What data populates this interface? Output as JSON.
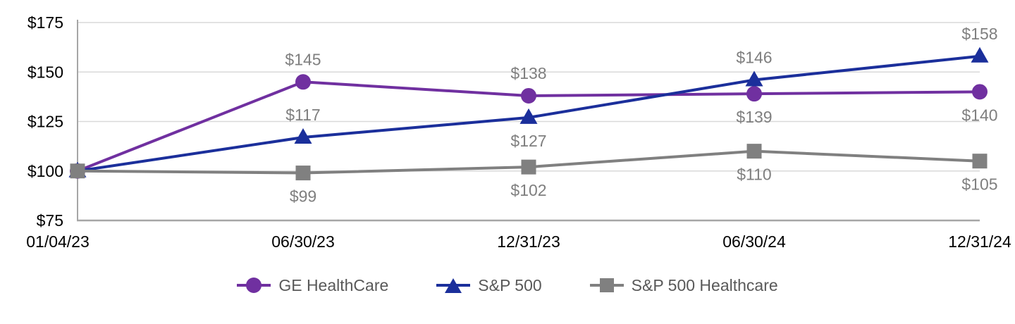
{
  "chart_data": {
    "type": "line",
    "title": "",
    "xlabel": "",
    "ylabel": "",
    "x_categories": [
      "01/04/23",
      "06/30/23",
      "12/31/23",
      "06/30/24",
      "12/31/24"
    ],
    "y_tick_labels": [
      "$175",
      "$150",
      "$125",
      "$100",
      "$75"
    ],
    "y_tick_values": [
      175,
      150,
      125,
      100,
      75
    ],
    "ylim": [
      75,
      175
    ],
    "grid": true,
    "legend_position": "bottom",
    "series": [
      {
        "name": "GE HealthCare",
        "color": "#7030A0",
        "marker": "circle",
        "values": [
          100,
          145,
          138,
          139,
          140
        ],
        "point_labels": [
          "",
          "$145",
          "$138",
          "$139",
          "$140"
        ],
        "label_side": [
          "",
          "above",
          "above",
          "below",
          "below"
        ]
      },
      {
        "name": "S&P 500",
        "color": "#1B2F9B",
        "marker": "triangle",
        "values": [
          100,
          117,
          127,
          146,
          158
        ],
        "point_labels": [
          "",
          "$117",
          "$127",
          "$146",
          "$158"
        ],
        "label_side": [
          "",
          "above",
          "below",
          "above",
          "above"
        ]
      },
      {
        "name": "S&P 500 Healthcare",
        "color": "#808080",
        "marker": "square",
        "values": [
          100,
          99,
          102,
          110,
          105
        ],
        "point_labels": [
          "",
          "$99",
          "$102",
          "$110",
          "$105"
        ],
        "label_side": [
          "",
          "below",
          "below",
          "below",
          "below"
        ]
      }
    ],
    "colors": {
      "gridline": "#D9D9D9",
      "axis": "#A6A6A6",
      "tick_label": "#000000",
      "data_label": "#7F7F7F",
      "legend_text": "#595959",
      "background": "#FFFFFF"
    }
  }
}
